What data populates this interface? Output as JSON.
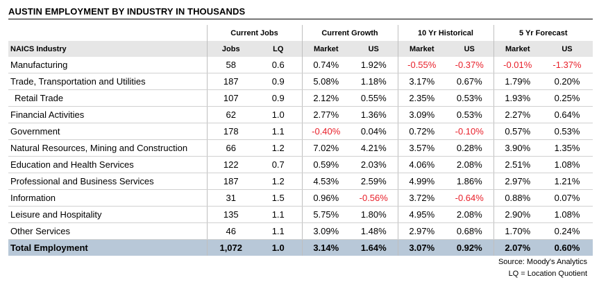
{
  "title": "AUSTIN EMPLOYMENT BY INDUSTRY IN THOUSANDS",
  "groups": [
    "Current Jobs",
    "Current Growth",
    "10 Yr Historical",
    "5 Yr Forecast"
  ],
  "columns": [
    "NAICS Industry",
    "Jobs",
    "LQ",
    "Market",
    "US",
    "Market",
    "US",
    "Market",
    "US"
  ],
  "rows": [
    {
      "name": "Manufacturing",
      "cells": [
        "58",
        "0.6",
        "0.74%",
        "1.92%",
        "-0.55%",
        "-0.37%",
        "-0.01%",
        "-1.37%"
      ]
    },
    {
      "name": "Trade, Transportation and Utilities",
      "cells": [
        "187",
        "0.9",
        "5.08%",
        "1.18%",
        "3.17%",
        "0.67%",
        "1.79%",
        "0.20%"
      ]
    },
    {
      "name": "Retail Trade",
      "cells": [
        "107",
        "0.9",
        "2.12%",
        "0.55%",
        "2.35%",
        "0.53%",
        "1.93%",
        "0.25%"
      ]
    },
    {
      "name": "Financial Activities",
      "cells": [
        "62",
        "1.0",
        "2.77%",
        "1.36%",
        "3.09%",
        "0.53%",
        "2.27%",
        "0.64%"
      ]
    },
    {
      "name": "Government",
      "cells": [
        "178",
        "1.1",
        "-0.40%",
        "0.04%",
        "0.72%",
        "-0.10%",
        "0.57%",
        "0.53%"
      ]
    },
    {
      "name": "Natural Resources, Mining and Construction",
      "cells": [
        "66",
        "1.2",
        "7.02%",
        "4.21%",
        "3.57%",
        "0.28%",
        "3.90%",
        "1.35%"
      ]
    },
    {
      "name": "Education and Health Services",
      "cells": [
        "122",
        "0.7",
        "0.59%",
        "2.03%",
        "4.06%",
        "2.08%",
        "2.51%",
        "1.08%"
      ]
    },
    {
      "name": "Professional and Business Services",
      "cells": [
        "187",
        "1.2",
        "4.53%",
        "2.59%",
        "4.99%",
        "1.86%",
        "2.97%",
        "1.21%"
      ]
    },
    {
      "name": "Information",
      "cells": [
        "31",
        "1.5",
        "0.96%",
        "-0.56%",
        "3.72%",
        "-0.64%",
        "0.88%",
        "0.07%"
      ]
    },
    {
      "name": "Leisure and Hospitality",
      "cells": [
        "135",
        "1.1",
        "5.75%",
        "1.80%",
        "4.95%",
        "2.08%",
        "2.90%",
        "1.08%"
      ]
    },
    {
      "name": "Other Services",
      "cells": [
        "46",
        "1.1",
        "3.09%",
        "1.48%",
        "2.97%",
        "0.68%",
        "1.70%",
        "0.24%"
      ]
    }
  ],
  "total": {
    "name": "Total Employment",
    "cells": [
      "1,072",
      "1.0",
      "3.14%",
      "1.64%",
      "3.07%",
      "0.92%",
      "2.07%",
      "0.60%"
    ]
  },
  "source": "Source: Moody's Analytics",
  "note": "LQ = Location Quotient",
  "colors": {
    "negative": "#e8202a",
    "header_bg": "#e6e6e6",
    "total_bg": "#b8c8d8"
  }
}
